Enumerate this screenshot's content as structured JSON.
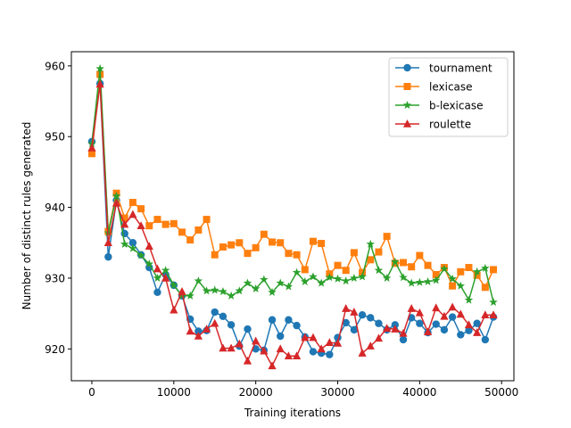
{
  "chart_data": {
    "type": "line",
    "title": "",
    "xlabel": "Training iterations",
    "ylabel": "Number of distinct rules generated",
    "xlim": [
      -2500,
      51500
    ],
    "ylim": [
      915.5,
      962
    ],
    "xticks": [
      0,
      10000,
      20000,
      30000,
      40000,
      50000
    ],
    "yticks": [
      920,
      930,
      940,
      950,
      960
    ],
    "legend_position": "top-right",
    "x": [
      0,
      1000,
      2000,
      3000,
      4000,
      5000,
      6000,
      7000,
      8000,
      9000,
      10000,
      11000,
      12000,
      13000,
      14000,
      15000,
      16000,
      17000,
      18000,
      19000,
      20000,
      21000,
      22000,
      23000,
      24000,
      25000,
      26000,
      27000,
      28000,
      29000,
      30000,
      31000,
      32000,
      33000,
      34000,
      35000,
      36000,
      37000,
      38000,
      39000,
      40000,
      41000,
      42000,
      43000,
      44000,
      45000,
      46000,
      47000,
      48000,
      49000
    ],
    "series": [
      {
        "name": "tournament",
        "color": "#1f77b4",
        "marker": "circle",
        "values": [
          949.3,
          957.5,
          933.0,
          941.0,
          936.3,
          935.0,
          933.3,
          931.5,
          928.0,
          930.5,
          929.0,
          927.5,
          924.2,
          922.5,
          922.6,
          925.2,
          924.6,
          923.4,
          920.4,
          922.8,
          920.0,
          919.8,
          924.1,
          921.8,
          924.1,
          923.3,
          921.7,
          919.6,
          919.4,
          919.2,
          921.6,
          923.7,
          922.7,
          924.8,
          924.4,
          923.6,
          922.7,
          923.4,
          921.3,
          924.4,
          923.6,
          922.3,
          923.5,
          922.7,
          924.5,
          922.0,
          922.6,
          923.6,
          921.3,
          924.5
        ]
      },
      {
        "name": "lexicase",
        "color": "#ff7f0e",
        "marker": "square",
        "values": [
          947.6,
          958.8,
          936.6,
          942.0,
          938.5,
          940.7,
          939.8,
          937.4,
          938.3,
          937.6,
          937.7,
          936.5,
          935.4,
          936.8,
          938.3,
          933.3,
          934.4,
          934.7,
          935.0,
          933.5,
          934.3,
          936.2,
          935.1,
          935.0,
          933.5,
          933.3,
          931.2,
          935.2,
          934.9,
          930.6,
          931.8,
          931.1,
          933.6,
          930.8,
          932.6,
          933.7,
          935.9,
          932.1,
          932.2,
          931.6,
          933.2,
          931.8,
          930.5,
          931.5,
          928.9,
          930.9,
          931.5,
          930.4,
          928.7,
          931.2
        ]
      },
      {
        "name": "b-lexicase",
        "color": "#2ca02c",
        "marker": "star",
        "values": [
          949.0,
          959.6,
          936.4,
          941.6,
          934.8,
          934.2,
          933.2,
          932.0,
          930.0,
          931.1,
          929.0,
          927.5,
          927.5,
          929.6,
          928.2,
          928.3,
          928.1,
          927.5,
          928.2,
          929.3,
          928.5,
          929.8,
          928.0,
          929.3,
          928.8,
          930.8,
          929.5,
          930.2,
          929.3,
          930.1,
          929.9,
          929.6,
          930.0,
          930.2,
          934.8,
          931.1,
          930.0,
          932.3,
          930.1,
          929.3,
          929.4,
          929.5,
          929.7,
          931.3,
          929.9,
          928.9,
          926.9,
          930.9,
          931.4,
          926.6
        ]
      },
      {
        "name": "roulette",
        "color": "#d62728",
        "marker": "triangle",
        "values": [
          948.4,
          957.4,
          935.0,
          940.6,
          937.6,
          939.0,
          937.4,
          934.5,
          931.3,
          930.0,
          925.5,
          928.1,
          922.5,
          921.8,
          922.8,
          923.6,
          920.1,
          920.1,
          920.7,
          918.3,
          921.1,
          919.7,
          917.6,
          920.0,
          919.0,
          919.0,
          921.6,
          921.6,
          920.0,
          920.9,
          920.8,
          925.7,
          925.2,
          919.4,
          920.4,
          921.5,
          922.9,
          922.8,
          922.2,
          925.7,
          925.1,
          922.4,
          925.8,
          924.6,
          925.9,
          924.9,
          923.4,
          922.3,
          924.8,
          924.8
        ]
      }
    ]
  }
}
